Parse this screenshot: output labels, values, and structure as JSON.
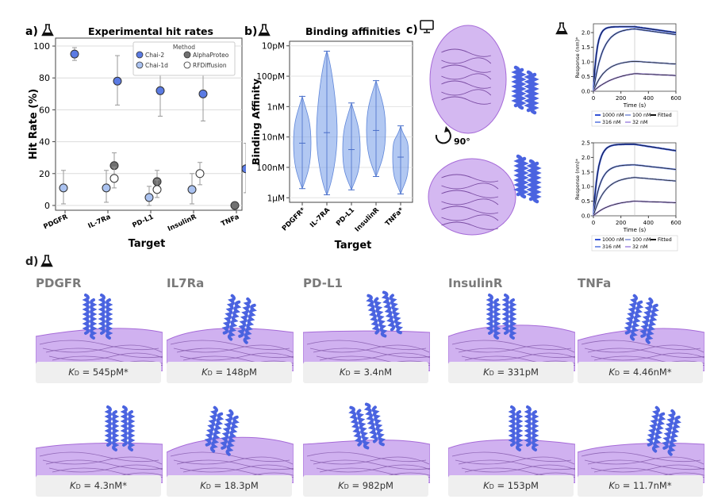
{
  "colors": {
    "chai2": "#5b7be3",
    "chai1d": "#aac2f0",
    "alphaproteo": "#707070",
    "rfdiffusion": "#ffffff",
    "violin": "#7fa4ea",
    "surface": "#b07de6",
    "helix": "#4a63e0",
    "fit": "#111111"
  },
  "icons": {
    "a": "flask-icon",
    "b": "flask-icon",
    "c": "monitor-icon",
    "c2": "flask-icon",
    "d": "flask-icon",
    "rotate": "rotate-arrow-icon"
  },
  "panel_a": {
    "label": "a)",
    "chart_data": {
      "type": "scatter",
      "title": "Experimental hit rates",
      "xlabel": "Target",
      "ylabel": "Hit Rate (%)",
      "ylim": [
        -3,
        105
      ],
      "yticks": [
        "0",
        "20",
        "40",
        "60",
        "80",
        "100"
      ],
      "categories": [
        "PDGFR",
        "IL-7Ra",
        "PD-L1",
        "InsulinR",
        "TNFa"
      ],
      "legend_title": "Method",
      "legend_position": "top-right",
      "grid": true,
      "series": [
        {
          "name": "Chai-2",
          "values": [
            95,
            78,
            72,
            70,
            23
          ],
          "err_low": [
            91,
            63,
            56,
            53,
            8
          ],
          "err_high": [
            99,
            94,
            86,
            86,
            39
          ]
        },
        {
          "name": "Chai-1d",
          "values": [
            11,
            11,
            5,
            10,
            null
          ],
          "err_low": [
            1,
            2,
            0,
            1,
            null
          ],
          "err_high": [
            22,
            22,
            12,
            20,
            null
          ]
        },
        {
          "name": "AlphaProteo",
          "values": [
            null,
            25,
            15,
            null,
            0
          ],
          "err_low": [
            null,
            18,
            9,
            null,
            null
          ],
          "err_high": [
            null,
            33,
            22,
            null,
            null
          ]
        },
        {
          "name": "RFDiffusion",
          "values": [
            null,
            17,
            10,
            20,
            null
          ],
          "err_low": [
            null,
            11,
            5,
            13,
            null
          ],
          "err_high": [
            null,
            24,
            16,
            27,
            null
          ]
        }
      ]
    }
  },
  "panel_b": {
    "label": "b)",
    "chart_data": {
      "type": "violin",
      "title": "Binding affinities",
      "xlabel": "Target",
      "ylabel": "Binding Affinity",
      "scale": "log",
      "ytick_labels": [
        "10pM",
        "100pM",
        "1nM",
        "10nM",
        "100nM",
        "1μM"
      ],
      "ytick_values_M": [
        1e-11,
        1e-10,
        1e-09,
        1e-08,
        1e-07,
        1e-06
      ],
      "categories": [
        "PDGFR*",
        "IL-7RA",
        "PD-L1",
        "InsulinR",
        "TNFa*"
      ],
      "ranges_M": [
        [
          4.6e-10,
          5e-07
        ],
        [
          1.5e-11,
          8e-07
        ],
        [
          7.6e-10,
          5.5e-07
        ],
        [
          1.4e-10,
          2e-07
        ],
        [
          4.3e-09,
          7.5e-07
        ]
      ],
      "medians_M": [
        1.6e-08,
        7.2e-09,
        2.6e-08,
        6.1e-09,
        4.6e-08
      ]
    }
  },
  "panel_c": {
    "label": "c)",
    "rotation": "90°",
    "charts": [
      {
        "chart_data": {
          "type": "line",
          "xlabel": "Time (s)",
          "ylabel": "Response (nm)*",
          "xlim": [
            0,
            600
          ],
          "ylim": [
            0,
            2.3
          ],
          "xticks": [
            "0",
            "200",
            "400",
            "600"
          ],
          "yticks": [
            "0.0",
            "0.5",
            "1.0",
            "1.5",
            "2.0"
          ],
          "assoc_end": 300,
          "legend": [
            "1000 nM",
            "100 nM",
            "Fitted",
            "316 nM",
            "32 nM"
          ],
          "series": [
            {
              "name": "1000 nM",
              "plateau": 2.2,
              "kobs": 0.04
            },
            {
              "name": "316 nM",
              "plateau": 2.15,
              "kobs": 0.015
            },
            {
              "name": "100 nM",
              "plateau": 1.05,
              "kobs": 0.012
            },
            {
              "name": "32 nM",
              "plateau": 0.72,
              "kobs": 0.006
            }
          ]
        }
      },
      {
        "chart_data": {
          "type": "line",
          "xlabel": "Time (s)",
          "ylabel": "Response (nm)*",
          "xlim": [
            0,
            600
          ],
          "ylim": [
            0,
            2.5
          ],
          "xticks": [
            "0",
            "200",
            "400",
            "600"
          ],
          "yticks": [
            "0.0",
            "0.5",
            "1.0",
            "1.5",
            "2.0",
            "2.5"
          ],
          "assoc_end": 300,
          "legend": [
            "1000 nM",
            "100 nM",
            "Fitted",
            "316 nM",
            "32 nM"
          ],
          "series": [
            {
              "name": "1000 nM",
              "plateau": 2.45,
              "kobs": 0.03
            },
            {
              "name": "316 nM",
              "plateau": 1.75,
              "kobs": 0.02
            },
            {
              "name": "100 nM",
              "plateau": 1.35,
              "kobs": 0.012
            },
            {
              "name": "32 nM",
              "plateau": 0.55,
              "kobs": 0.008
            }
          ]
        }
      }
    ]
  },
  "panel_d": {
    "label": "d)",
    "targets": [
      "PDGFR",
      "IL7Ra",
      "PD-L1",
      "InsulinR",
      "TNFa"
    ],
    "kd_row1": [
      "545pM*",
      "148pM",
      "3.4nM",
      "331pM",
      "4.46nM*"
    ],
    "kd_row2": [
      "4.3nM*",
      "18.3pM",
      "982pM",
      "153pM",
      "11.7nM*"
    ],
    "kd_symbol": "K",
    "kd_sub": "D",
    "kd_eq": " = "
  }
}
